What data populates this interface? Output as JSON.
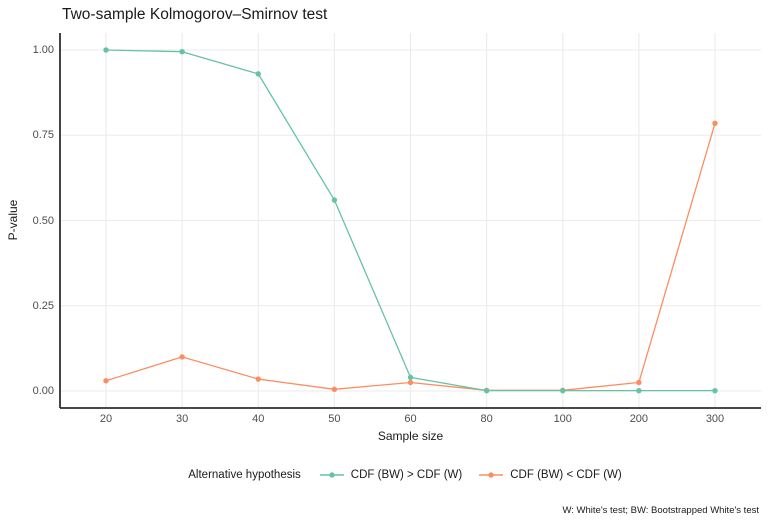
{
  "chart": {
    "title": "Two-sample Kolmogorov–Smirnov test",
    "xlabel": "Sample size",
    "ylabel": "P-value"
  },
  "legend": {
    "title": "Alternative hypothesis"
  },
  "caption": "W: White's test; BW: Bootstrapped White's test",
  "colors": {
    "background": "#ffffff",
    "grid": "#ebebeb",
    "axis_line": "#2f2f2f",
    "tick_label": "#4d4d4d",
    "text": "#1a1a1a"
  },
  "chart_data": {
    "type": "line",
    "title": "Two-sample Kolmogorov–Smirnov test",
    "xlabel": "Sample size",
    "ylabel": "P-value",
    "x_scale": "discrete-equal-spacing",
    "categories": [
      20,
      30,
      40,
      50,
      60,
      80,
      100,
      200,
      300
    ],
    "ylim": [
      0,
      1
    ],
    "y_ticks": [
      0,
      0.25,
      0.5,
      0.75,
      1.0
    ],
    "grid": "major-only",
    "legend_position": "bottom",
    "legend_title": "Alternative hypothesis",
    "series": [
      {
        "name": "CDF (BW) > CDF (W)",
        "color": "#66C2A5",
        "values": [
          1.0,
          0.995,
          0.93,
          0.56,
          0.04,
          0.001,
          0.001,
          0.001,
          0.001
        ]
      },
      {
        "name": "CDF (BW) < CDF (W)",
        "color": "#FC8D62",
        "values": [
          0.03,
          0.1,
          0.035,
          0.005,
          0.025,
          0.002,
          0.002,
          0.025,
          0.785
        ]
      }
    ],
    "caption": "W: White's test; BW: Bootstrapped White's test"
  }
}
